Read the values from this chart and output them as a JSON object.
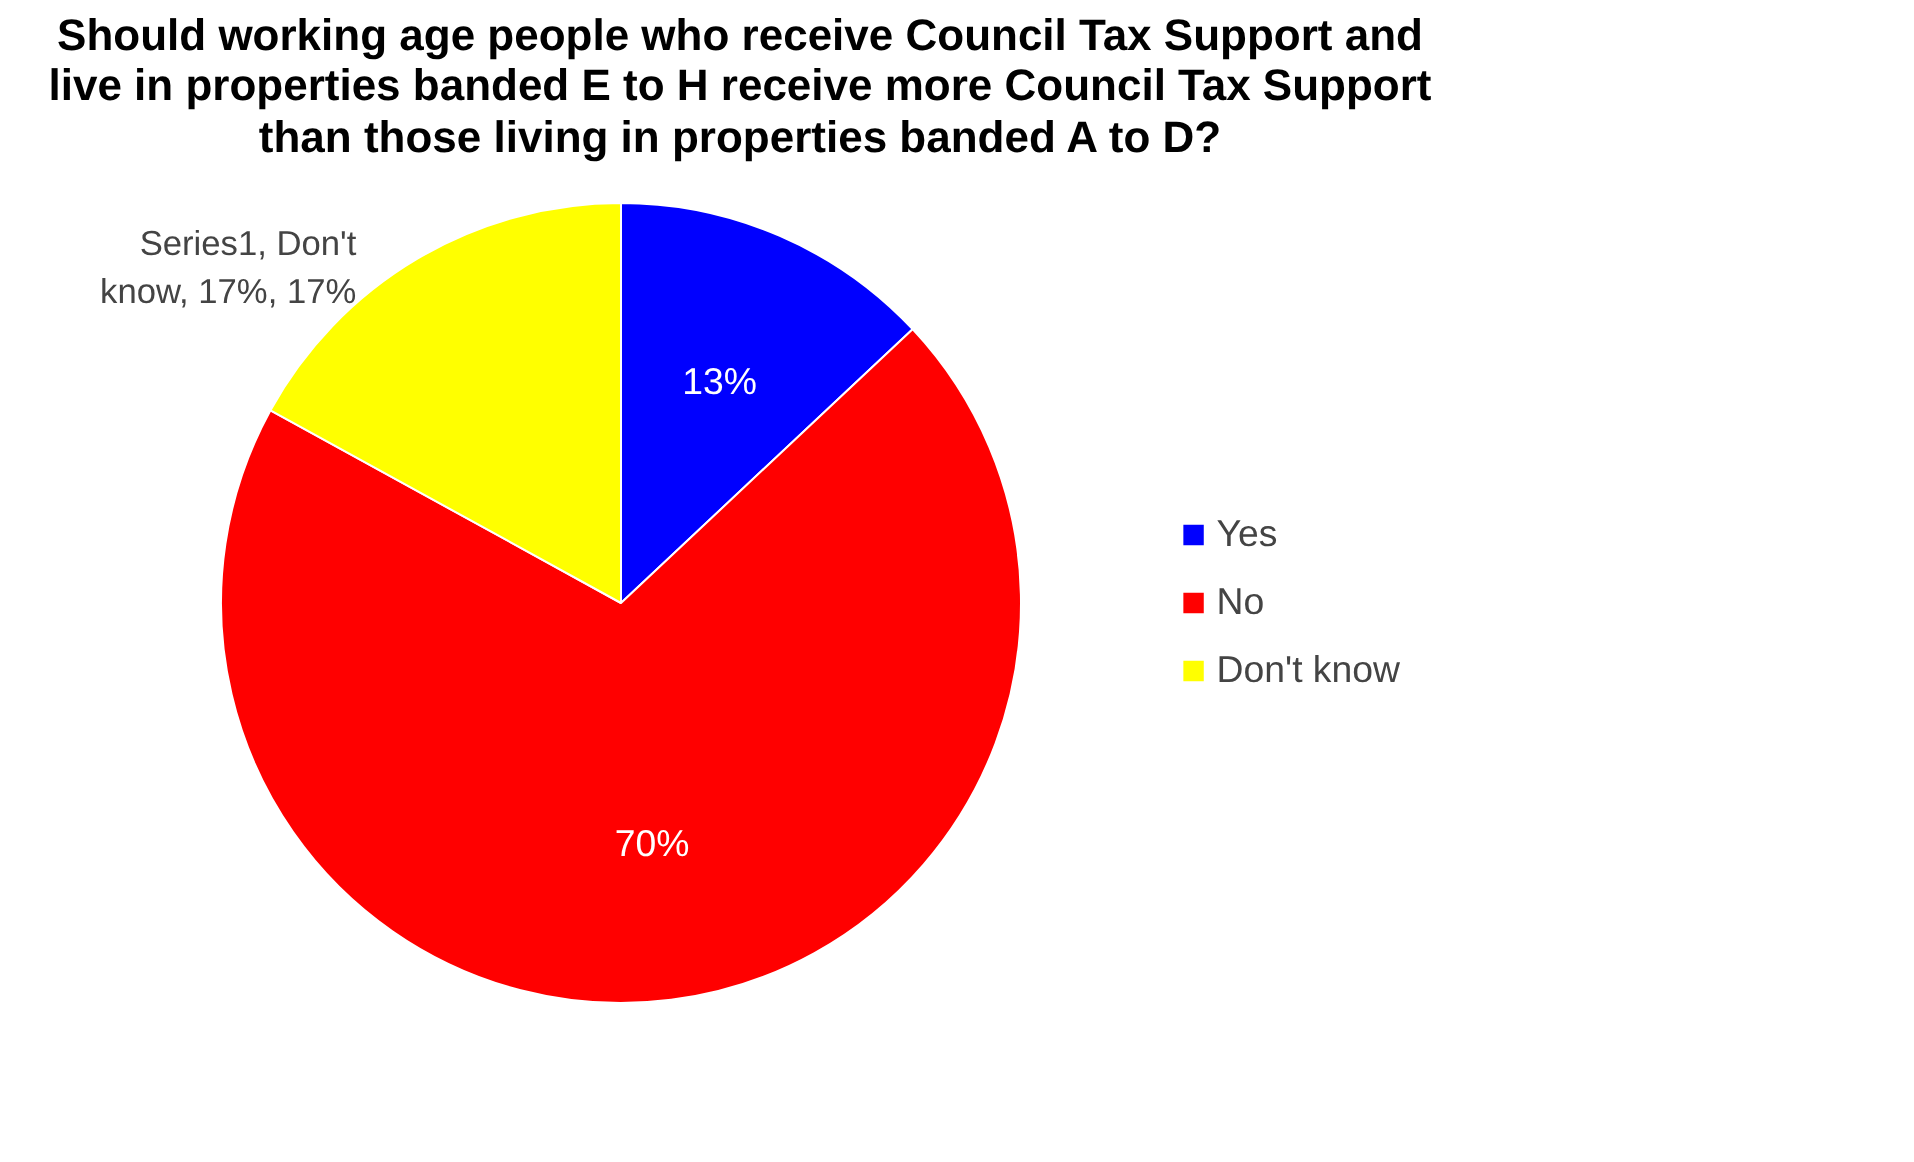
{
  "chart_data": {
    "type": "pie",
    "title": "Should working age people who receive Council Tax Support and live in properties banded E to H receive more Council Tax Support than those living in properties banded A to D?",
    "categories": [
      "Yes",
      "No",
      "Don't know"
    ],
    "values": [
      13,
      70,
      17
    ],
    "colors": [
      "#0000ff",
      "#ff0000",
      "#ffff00"
    ],
    "value_labels": [
      "13%",
      "70%",
      "Series1, Don't know, 17%, 17%"
    ],
    "legend": "right"
  }
}
